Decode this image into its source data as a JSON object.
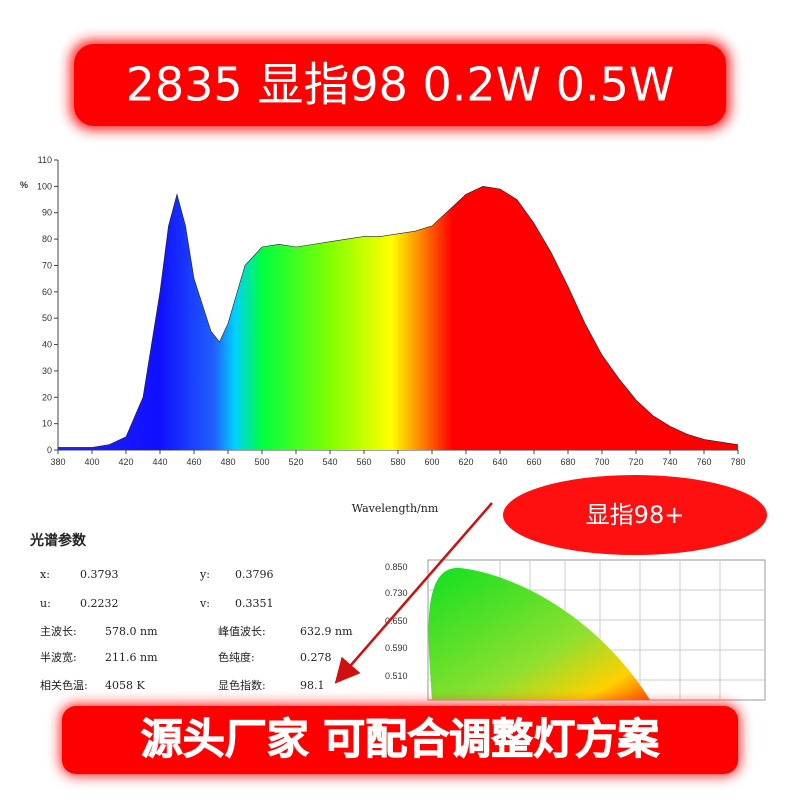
{
  "header": {
    "title": "2835 显指98 0.2W 0.5W"
  },
  "chart_data": {
    "type": "area",
    "y_label": "%",
    "x_label": "Wavelength/nm",
    "x": [
      380,
      390,
      400,
      410,
      420,
      430,
      440,
      445,
      450,
      455,
      460,
      470,
      475,
      480,
      490,
      500,
      510,
      520,
      530,
      540,
      550,
      560,
      570,
      580,
      590,
      600,
      610,
      620,
      630,
      640,
      650,
      660,
      670,
      680,
      690,
      700,
      710,
      720,
      730,
      740,
      750,
      760,
      770,
      780
    ],
    "values": [
      1,
      1,
      1,
      2,
      5,
      20,
      60,
      85,
      97,
      85,
      65,
      45,
      41,
      48,
      70,
      77,
      78,
      77,
      78,
      79,
      80,
      81,
      81,
      82,
      83,
      85,
      91,
      97,
      100,
      99,
      95,
      86,
      75,
      62,
      48,
      36,
      27,
      19,
      13,
      9,
      6,
      4,
      3,
      2
    ],
    "xlim": [
      380,
      780
    ],
    "ylim": [
      0,
      110
    ],
    "xticks": [
      380,
      400,
      420,
      440,
      460,
      480,
      500,
      520,
      540,
      560,
      580,
      600,
      620,
      640,
      660,
      680,
      700,
      720,
      740,
      760,
      780
    ],
    "yticks": [
      0,
      10,
      20,
      30,
      40,
      50,
      60,
      70,
      80,
      90,
      100,
      110
    ]
  },
  "callout": {
    "text": "显指98+"
  },
  "params": {
    "title": "光谱参数",
    "rows": [
      [
        "x:",
        "0.3793",
        "y:",
        "0.3796"
      ],
      [
        "u:",
        "0.2232",
        "v:",
        "0.3351"
      ],
      [
        "主波长:",
        "578.0 nm",
        "峰值波长:",
        "632.9 nm"
      ],
      [
        "半波宽:",
        "211.6 nm",
        "色纯度:",
        "0.278"
      ],
      [
        "相关色温:",
        "4058 K",
        "显色指数:",
        "98.1"
      ]
    ]
  },
  "cie": {
    "ticks": [
      "0.850",
      "0.730",
      "0.650",
      "0.590",
      "0.510"
    ]
  },
  "footer": {
    "text": "源头厂家 可配合调整灯方案"
  }
}
